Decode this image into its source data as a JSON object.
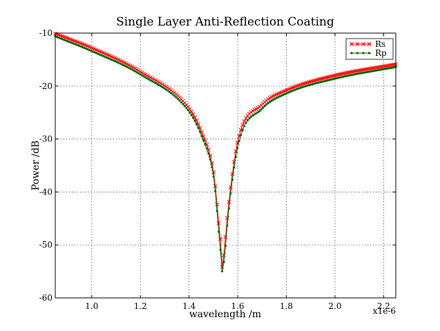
{
  "chart_data": {
    "type": "line",
    "title": "Single Layer Anti-Reflection Coating",
    "xlabel": "wavelength /m",
    "ylabel": "Power /dB",
    "x_offset_text": "x1e-6",
    "xlim": [
      0.85,
      2.25
    ],
    "ylim": [
      -60,
      -10
    ],
    "grid": true,
    "legend_position": "top-right",
    "x_ticks": [
      1.0,
      1.2,
      1.4,
      1.6,
      1.8,
      2.0,
      2.2
    ],
    "x_tick_labels": [
      "1.0",
      "1.2",
      "1.4",
      "1.6",
      "1.8",
      "2.0",
      "2.2"
    ],
    "y_ticks": [
      -10,
      -20,
      -30,
      -40,
      -50,
      -60
    ],
    "y_tick_labels": [
      "-10",
      "-20",
      "-30",
      "-40",
      "-50",
      "-60"
    ],
    "series": [
      {
        "name": "Rs",
        "color": "#ff0000",
        "marker": "x",
        "x": [
          0.85,
          1.0,
          1.2,
          1.4,
          1.45,
          1.5,
          1.51,
          1.52,
          1.53,
          1.535,
          1.55,
          1.56,
          1.6,
          1.7,
          1.8,
          2.0,
          2.25
        ],
        "y": [
          -10.1,
          -12.8,
          -17.3,
          -24.2,
          -28.5,
          -36.0,
          -39.8,
          -45.0,
          -49.5,
          -54.2,
          -48.5,
          -43.5,
          -30.5,
          -23.5,
          -20.8,
          -18.0,
          -15.9
        ]
      },
      {
        "name": "Rp",
        "color": "#006400",
        "marker": ".",
        "x": [
          0.85,
          1.0,
          1.2,
          1.4,
          1.45,
          1.5,
          1.51,
          1.52,
          1.53,
          1.535,
          1.55,
          1.56,
          1.6,
          1.7,
          1.8,
          2.0,
          2.25
        ],
        "y": [
          -10.6,
          -13.4,
          -17.8,
          -24.8,
          -29.2,
          -36.8,
          -40.8,
          -46.5,
          -51.5,
          -55.0,
          -50.2,
          -44.8,
          -31.5,
          -24.3,
          -21.4,
          -18.6,
          -16.4
        ]
      }
    ]
  }
}
